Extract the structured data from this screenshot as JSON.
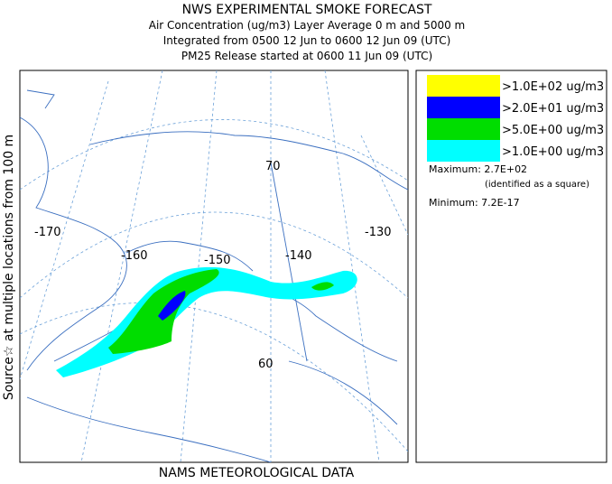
{
  "header": {
    "title": "NWS EXPERIMENTAL SMOKE FORECAST",
    "lines": [
      "Air Concentration (ug/m3) Layer Average    0 m and  5000 m",
      "Integrated from 0500 12 Jun to 0600 12 Jun 09 (UTC)",
      "PM25 Release started at 0600 11 Jun 09 (UTC)"
    ]
  },
  "side_label": "Source☆   at multiple locations   from   100 m",
  "footer": "NAMS METEOROLOGICAL DATA",
  "legend": {
    "entries": [
      {
        "label": ">1.0E+02 ug/m3",
        "color": "#ffff00"
      },
      {
        "label": ">2.0E+01 ug/m3",
        "color": "#0000ff"
      },
      {
        "label": ">5.0E+00 ug/m3",
        "color": "#00dd00"
      },
      {
        "label": ">1.0E+00 ug/m3",
        "color": "#00ffff"
      }
    ],
    "maximum": "Maximum: 2.7E+02",
    "maximum_note": "(identified as a square)",
    "minimum": "Minimum: 7.2E-17"
  },
  "map": {
    "labels": [
      "-170",
      "-160",
      "-150",
      "-140",
      "-130",
      "70",
      "60"
    ]
  }
}
